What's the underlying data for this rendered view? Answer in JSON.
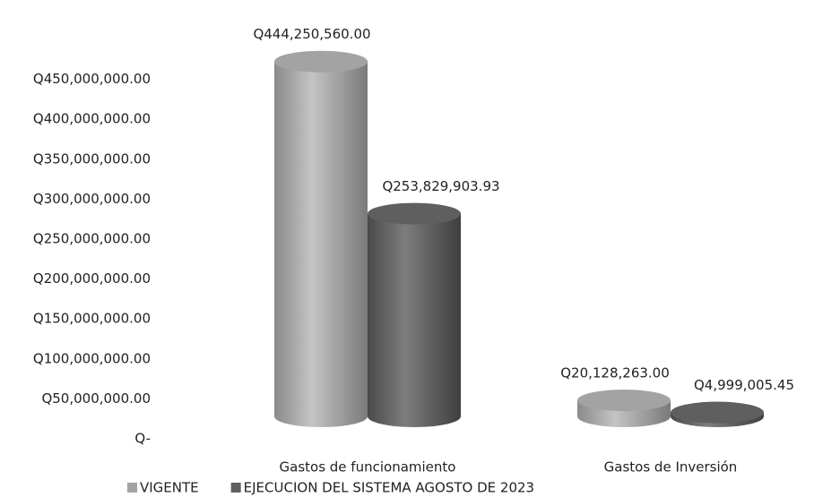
{
  "chart_data": {
    "type": "bar3d",
    "categories": [
      "Gastos de funcionamiento",
      "Gastos de  Inversión"
    ],
    "series": [
      {
        "name": "VIGENTE",
        "color": "#a3a3a3",
        "values": [
          444250560.0,
          20128263.0
        ],
        "value_labels": [
          "Q444,250,560.00",
          "Q20,128,263.00"
        ]
      },
      {
        "name": "EJECUCION DEL SISTEMA AGOSTO DE 2023",
        "color": "#5f5f5f",
        "values": [
          253829903.93,
          4999005.45
        ],
        "value_labels": [
          "Q253,829,903.93",
          "Q4,999,005.45"
        ]
      }
    ],
    "ylim": [
      0,
      500000000
    ],
    "yticks": [
      {
        "value": 0,
        "label": "Q-"
      },
      {
        "value": 50000000,
        "label": "Q50,000,000.00"
      },
      {
        "value": 100000000,
        "label": "Q100,000,000.00"
      },
      {
        "value": 150000000,
        "label": "Q150,000,000.00"
      },
      {
        "value": 200000000,
        "label": "Q200,000,000.00"
      },
      {
        "value": 250000000,
        "label": "Q250,000,000.00"
      },
      {
        "value": 300000000,
        "label": "Q300,000,000.00"
      },
      {
        "value": 350000000,
        "label": "Q350,000,000.00"
      },
      {
        "value": 400000000,
        "label": "Q400,000,000.00"
      },
      {
        "value": 450000000,
        "label": "Q450,000,000.00"
      }
    ],
    "grid": false,
    "legend": "bottom"
  }
}
